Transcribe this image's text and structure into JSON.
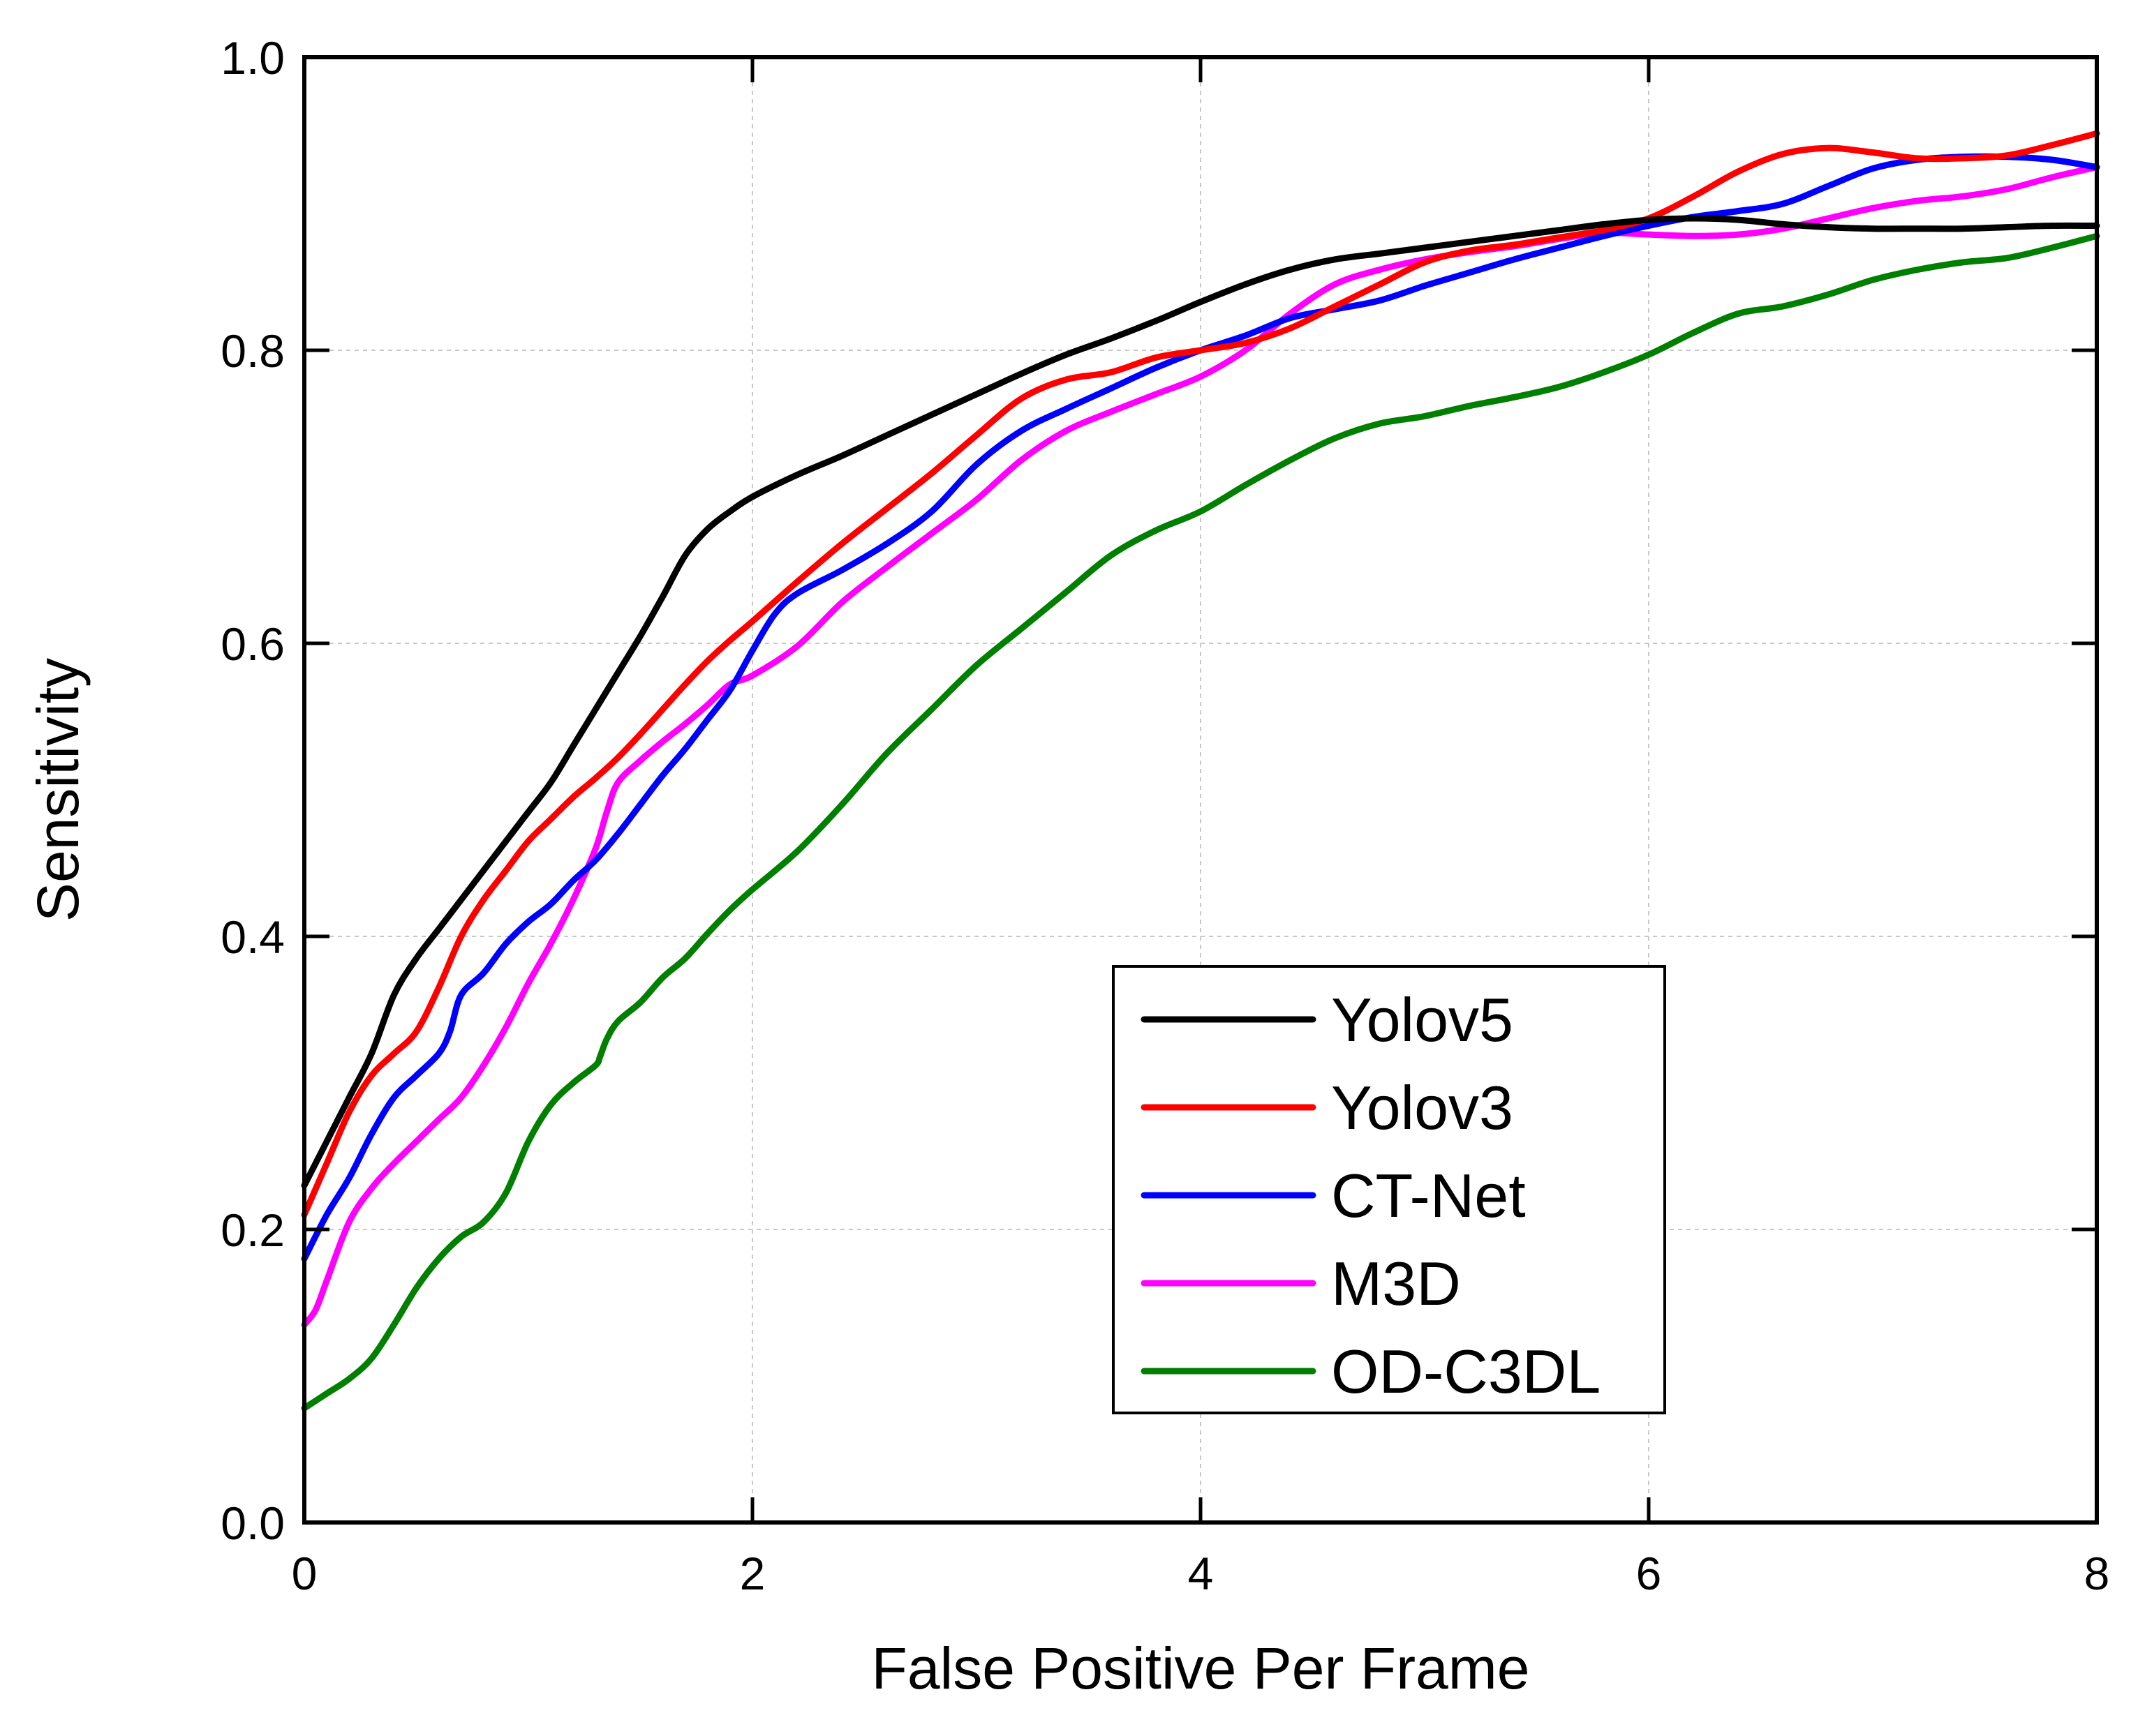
{
  "chart_data": {
    "type": "line",
    "title": "",
    "xlabel": "False Positive Per Frame",
    "ylabel": "Sensitivity",
    "xlim": [
      0,
      8
    ],
    "ylim": [
      0,
      1.0
    ],
    "xticks": [
      0,
      2,
      4,
      6,
      8
    ],
    "yticks": [
      0.0,
      0.2,
      0.4,
      0.6,
      0.8,
      1.0
    ],
    "xtick_labels": [
      "0",
      "2",
      "4",
      "6",
      "8"
    ],
    "ytick_labels": [
      "0.0",
      "0.2",
      "0.4",
      "0.6",
      "0.8",
      "1.0"
    ],
    "grid": true,
    "legend_position": "bottom-right",
    "series": [
      {
        "name": "Yolov5",
        "color": "#000000",
        "x": [
          0,
          0.1,
          0.2,
          0.3,
          0.4,
          0.5,
          0.6,
          0.7,
          0.8,
          0.9,
          1.0,
          1.1,
          1.2,
          1.3,
          1.4,
          1.5,
          1.6,
          1.7,
          1.8,
          1.9,
          2.0,
          2.2,
          2.4,
          2.6,
          2.8,
          3.0,
          3.2,
          3.4,
          3.6,
          3.8,
          4.0,
          4.2,
          4.4,
          4.6,
          4.8,
          5.0,
          5.2,
          5.4,
          5.6,
          5.8,
          6.0,
          6.2,
          6.4,
          6.6,
          6.8,
          7.0,
          7.2,
          7.4,
          7.6,
          7.8,
          8.0
        ],
        "y": [
          0.23,
          0.26,
          0.29,
          0.32,
          0.36,
          0.385,
          0.405,
          0.425,
          0.445,
          0.465,
          0.485,
          0.505,
          0.53,
          0.555,
          0.58,
          0.605,
          0.632,
          0.66,
          0.678,
          0.69,
          0.7,
          0.715,
          0.728,
          0.742,
          0.756,
          0.77,
          0.784,
          0.797,
          0.808,
          0.82,
          0.833,
          0.845,
          0.855,
          0.862,
          0.866,
          0.87,
          0.874,
          0.878,
          0.882,
          0.886,
          0.889,
          0.89,
          0.889,
          0.886,
          0.884,
          0.883,
          0.883,
          0.883,
          0.884,
          0.885,
          0.885
        ]
      },
      {
        "name": "Yolov3",
        "color": "#ff0000",
        "x": [
          0,
          0.1,
          0.2,
          0.3,
          0.4,
          0.5,
          0.6,
          0.7,
          0.8,
          0.9,
          1.0,
          1.1,
          1.2,
          1.3,
          1.4,
          1.5,
          1.6,
          1.7,
          1.8,
          1.9,
          2.0,
          2.2,
          2.4,
          2.6,
          2.8,
          3.0,
          3.2,
          3.4,
          3.6,
          3.8,
          4.0,
          4.2,
          4.4,
          4.6,
          4.8,
          5.0,
          5.2,
          5.4,
          5.6,
          5.8,
          6.0,
          6.2,
          6.4,
          6.6,
          6.8,
          7.0,
          7.2,
          7.4,
          7.6,
          7.8,
          8.0
        ],
        "y": [
          0.21,
          0.245,
          0.28,
          0.305,
          0.32,
          0.335,
          0.365,
          0.4,
          0.425,
          0.445,
          0.465,
          0.48,
          0.495,
          0.508,
          0.522,
          0.538,
          0.555,
          0.572,
          0.588,
          0.602,
          0.615,
          0.642,
          0.668,
          0.692,
          0.716,
          0.742,
          0.767,
          0.78,
          0.785,
          0.795,
          0.8,
          0.805,
          0.815,
          0.83,
          0.845,
          0.86,
          0.868,
          0.872,
          0.877,
          0.882,
          0.89,
          0.905,
          0.922,
          0.934,
          0.938,
          0.935,
          0.931,
          0.931,
          0.933,
          0.94,
          0.948
        ]
      },
      {
        "name": "CT-Net",
        "color": "#0000ff",
        "x": [
          0,
          0.1,
          0.2,
          0.3,
          0.4,
          0.5,
          0.6,
          0.65,
          0.7,
          0.8,
          0.9,
          1.0,
          1.1,
          1.2,
          1.3,
          1.4,
          1.5,
          1.6,
          1.7,
          1.8,
          1.9,
          2.0,
          2.1,
          2.2,
          2.4,
          2.6,
          2.8,
          3.0,
          3.2,
          3.4,
          3.6,
          3.8,
          4.0,
          4.2,
          4.4,
          4.6,
          4.8,
          5.0,
          5.2,
          5.4,
          5.6,
          5.8,
          6.0,
          6.2,
          6.4,
          6.6,
          6.8,
          7.0,
          7.2,
          7.4,
          7.6,
          7.8,
          8.0
        ],
        "y": [
          0.18,
          0.21,
          0.235,
          0.265,
          0.29,
          0.305,
          0.32,
          0.335,
          0.36,
          0.375,
          0.395,
          0.41,
          0.422,
          0.438,
          0.452,
          0.47,
          0.49,
          0.51,
          0.528,
          0.548,
          0.568,
          0.595,
          0.62,
          0.634,
          0.65,
          0.668,
          0.69,
          0.722,
          0.745,
          0.76,
          0.774,
          0.788,
          0.8,
          0.81,
          0.822,
          0.828,
          0.834,
          0.844,
          0.853,
          0.862,
          0.87,
          0.878,
          0.885,
          0.891,
          0.895,
          0.9,
          0.912,
          0.924,
          0.93,
          0.932,
          0.932,
          0.93,
          0.925
        ]
      },
      {
        "name": "M3D",
        "color": "#ff00ff",
        "x": [
          0,
          0.05,
          0.1,
          0.2,
          0.3,
          0.4,
          0.5,
          0.6,
          0.7,
          0.8,
          0.9,
          1.0,
          1.1,
          1.2,
          1.3,
          1.35,
          1.4,
          1.5,
          1.6,
          1.7,
          1.8,
          1.9,
          2.0,
          2.2,
          2.4,
          2.6,
          2.8,
          3.0,
          3.2,
          3.4,
          3.6,
          3.8,
          4.0,
          4.2,
          4.4,
          4.6,
          4.8,
          5.0,
          5.2,
          5.4,
          5.6,
          5.8,
          6.0,
          6.2,
          6.4,
          6.6,
          6.8,
          7.0,
          7.2,
          7.4,
          7.6,
          7.8,
          8.0
        ],
        "y": [
          0.135,
          0.145,
          0.165,
          0.205,
          0.228,
          0.245,
          0.26,
          0.275,
          0.29,
          0.312,
          0.338,
          0.368,
          0.395,
          0.425,
          0.46,
          0.485,
          0.505,
          0.52,
          0.533,
          0.545,
          0.558,
          0.572,
          0.578,
          0.598,
          0.628,
          0.652,
          0.675,
          0.698,
          0.725,
          0.745,
          0.758,
          0.77,
          0.782,
          0.8,
          0.825,
          0.845,
          0.855,
          0.862,
          0.867,
          0.871,
          0.876,
          0.88,
          0.879,
          0.878,
          0.879,
          0.883,
          0.89,
          0.897,
          0.902,
          0.905,
          0.91,
          0.918,
          0.925
        ]
      },
      {
        "name": "OD-C3DL",
        "color": "#007f00",
        "x": [
          0,
          0.1,
          0.2,
          0.3,
          0.4,
          0.5,
          0.6,
          0.7,
          0.8,
          0.9,
          1.0,
          1.1,
          1.2,
          1.3,
          1.32,
          1.35,
          1.4,
          1.5,
          1.6,
          1.7,
          1.8,
          1.9,
          2.0,
          2.2,
          2.4,
          2.6,
          2.8,
          3.0,
          3.2,
          3.4,
          3.6,
          3.8,
          4.0,
          4.2,
          4.4,
          4.6,
          4.8,
          5.0,
          5.2,
          5.4,
          5.6,
          5.8,
          6.0,
          6.2,
          6.4,
          6.6,
          6.8,
          7.0,
          7.2,
          7.4,
          7.6,
          7.8,
          8.0
        ],
        "y": [
          0.078,
          0.088,
          0.098,
          0.112,
          0.135,
          0.16,
          0.18,
          0.195,
          0.205,
          0.225,
          0.26,
          0.285,
          0.3,
          0.312,
          0.318,
          0.33,
          0.342,
          0.355,
          0.372,
          0.385,
          0.402,
          0.418,
          0.432,
          0.458,
          0.49,
          0.525,
          0.555,
          0.585,
          0.61,
          0.635,
          0.66,
          0.677,
          0.69,
          0.708,
          0.725,
          0.74,
          0.75,
          0.755,
          0.762,
          0.768,
          0.775,
          0.785,
          0.797,
          0.812,
          0.825,
          0.83,
          0.838,
          0.848,
          0.855,
          0.86,
          0.863,
          0.87,
          0.878
        ]
      }
    ]
  }
}
